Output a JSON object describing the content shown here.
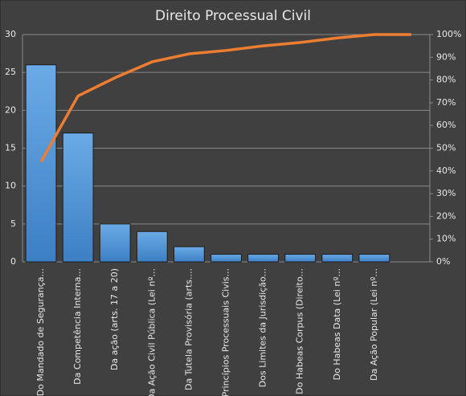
{
  "chart_data": {
    "type": "pareto",
    "title": "Direito Processual Civil",
    "categories": [
      "Do Mandado de Segurança...",
      "Da Competência Interna...",
      "Da ação (arts. 17 a 20)",
      "Da Ação Civil Pública (Lei nº...",
      "Da Tutela Provisória (arts....",
      "Princípios Processuais Civis...",
      "Dos Limites da Jurisdição...",
      "Do Habeas Corpus (Direito...",
      "Do Habeas Data (Lei nº...",
      "Da Ação Popular (Lei nº...",
      null
    ],
    "series": [
      {
        "type": "bar",
        "color": "#5b9bd5",
        "values": [
          26,
          17,
          5,
          4,
          2,
          1,
          1,
          1,
          1,
          1,
          null
        ]
      },
      {
        "type": "line",
        "color": "#ed7d31",
        "axis": "y2",
        "values": [
          44,
          73,
          81,
          88,
          91.5,
          93,
          95,
          96.5,
          98.5,
          100,
          100
        ]
      }
    ],
    "ylim": [
      0,
      30
    ],
    "yticks": [
      0,
      5,
      10,
      15,
      20,
      25,
      30
    ],
    "y2lim": [
      0,
      100
    ],
    "y2ticks": [
      {
        "value": 0,
        "label": "0%"
      },
      {
        "value": 10,
        "label": "10%"
      },
      {
        "value": 20,
        "label": "20%"
      },
      {
        "value": 30,
        "label": "30%"
      },
      {
        "value": 40,
        "label": "40%"
      },
      {
        "value": 50,
        "label": "50%"
      },
      {
        "value": 60,
        "label": "60%"
      },
      {
        "value": 70,
        "label": "70%"
      },
      {
        "value": 80,
        "label": "80%"
      },
      {
        "value": 90,
        "label": "90%"
      },
      {
        "value": 100,
        "label": "100%"
      }
    ],
    "grid": true
  }
}
